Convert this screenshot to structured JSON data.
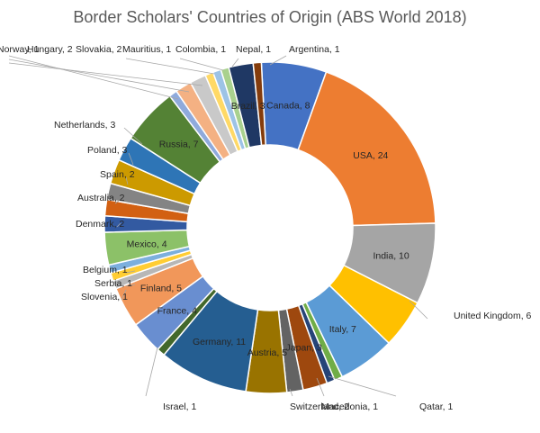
{
  "chart_data": {
    "type": "pie",
    "title": "Border Scholars' Countries of Origin (ABS World 2018)",
    "hole": "donut",
    "legend": "none",
    "slices": [
      {
        "label": "Canada",
        "value": 8,
        "color": "#4472c4"
      },
      {
        "label": "USA",
        "value": 24,
        "color": "#ed7d31"
      },
      {
        "label": "India",
        "value": 10,
        "color": "#a5a5a5"
      },
      {
        "label": "United Kingdom",
        "value": 6,
        "color": "#ffc000"
      },
      {
        "label": "Italy",
        "value": 7,
        "color": "#5b9bd5"
      },
      {
        "label": "Qatar",
        "value": 1,
        "color": "#70ad47"
      },
      {
        "label": "Macedonia",
        "value": 1,
        "color": "#264478"
      },
      {
        "label": "Japan",
        "value": 3,
        "color": "#9e480e"
      },
      {
        "label": "Switzerland",
        "value": 2,
        "color": "#636363"
      },
      {
        "label": "Austria",
        "value": 5,
        "color": "#997300"
      },
      {
        "label": "Germany",
        "value": 11,
        "color": "#255e91"
      },
      {
        "label": "Israel",
        "value": 1,
        "color": "#43682b"
      },
      {
        "label": "France",
        "value": 4,
        "color": "#698ed0"
      },
      {
        "label": "Finland",
        "value": 5,
        "color": "#f1975a"
      },
      {
        "label": "Slovenia",
        "value": 1,
        "color": "#b7b7b7"
      },
      {
        "label": "Serbia",
        "value": 1,
        "color": "#ffcd33"
      },
      {
        "label": "Belgium",
        "value": 1,
        "color": "#7cafdd"
      },
      {
        "label": "Mexico",
        "value": 4,
        "color": "#8cc168"
      },
      {
        "label": "Denmark",
        "value": 2,
        "color": "#335aa1"
      },
      {
        "label": "Australia",
        "value": 2,
        "color": "#d26012"
      },
      {
        "label": "Spain",
        "value": 2,
        "color": "#848484"
      },
      {
        "label": "Poland",
        "value": 3,
        "color": "#cc9a00"
      },
      {
        "label": "Netherlands",
        "value": 3,
        "color": "#2e75b6"
      },
      {
        "label": "Russia",
        "value": 7,
        "color": "#548235"
      },
      {
        "label": "Norway",
        "value": 1,
        "color": "#8faadc"
      },
      {
        "label": "Hungary",
        "value": 2,
        "color": "#f4b183"
      },
      {
        "label": "Slovakia",
        "value": 2,
        "color": "#c9c9c9"
      },
      {
        "label": "Mauritius",
        "value": 1,
        "color": "#ffd966"
      },
      {
        "label": "Colombia",
        "value": 1,
        "color": "#9dc3e6"
      },
      {
        "label": "Nepal",
        "value": 1,
        "color": "#a9d18e"
      },
      {
        "label": "Brazil",
        "value": 3,
        "color": "#1f3864"
      },
      {
        "label": "Argentina",
        "value": 1,
        "color": "#843c0c"
      }
    ]
  }
}
